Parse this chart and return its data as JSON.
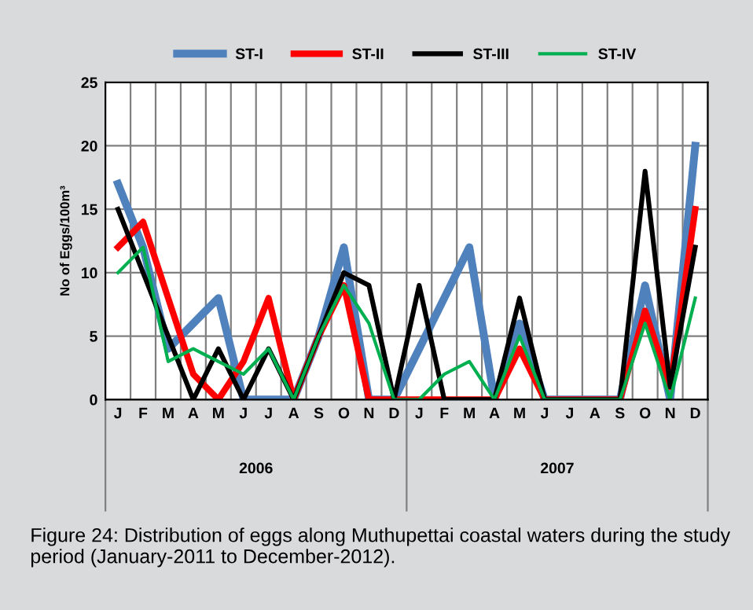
{
  "chart_data": {
    "type": "line",
    "ylabel": "No of Eggs/100m³",
    "categories": [
      "J",
      "F",
      "M",
      "A",
      "M",
      "J",
      "J",
      "A",
      "S",
      "O",
      "N",
      "D",
      "J",
      "F",
      "M",
      "A",
      "M",
      "J",
      "J",
      "A",
      "S",
      "O",
      "N",
      "D"
    ],
    "series": [
      {
        "name": "ST-I",
        "color": "#4f81bd",
        "values": [
          17,
          12,
          4,
          6,
          8,
          0,
          0,
          0,
          5,
          12,
          0,
          0,
          4,
          8,
          12,
          0,
          6,
          0,
          0,
          0,
          0,
          9,
          0,
          20
        ]
      },
      {
        "name": "ST-II",
        "color": "#ff0000",
        "values": [
          12,
          14,
          8,
          2,
          0,
          3,
          8,
          0,
          5,
          9,
          0,
          0,
          0,
          0,
          0,
          0,
          4,
          0,
          0,
          0,
          0,
          7,
          1,
          15
        ]
      },
      {
        "name": "ST-III",
        "color": "#000000",
        "values": [
          15,
          10,
          5,
          0,
          4,
          0,
          4,
          0,
          5,
          10,
          9,
          0,
          9,
          0,
          0,
          0,
          8,
          0,
          0,
          0,
          0,
          18,
          1,
          12
        ]
      },
      {
        "name": "ST-IV",
        "color": "#00b050",
        "values": [
          10,
          12,
          3,
          4,
          3,
          2,
          4,
          0,
          5,
          9,
          6,
          0,
          0,
          2,
          3,
          0,
          5,
          0,
          0,
          0,
          0,
          6,
          0,
          8
        ]
      }
    ],
    "ylim": [
      0,
      25
    ],
    "yticks": [
      0,
      5,
      10,
      15,
      20,
      25
    ],
    "grid": true,
    "legend": "top",
    "marker": "none",
    "line_style": "solid",
    "annotations": [
      "2006",
      "2007",
      "Figure 24: Distribution of eggs along Muthupettai coastal waters during the study period (January-2011 to December-2012)."
    ]
  }
}
